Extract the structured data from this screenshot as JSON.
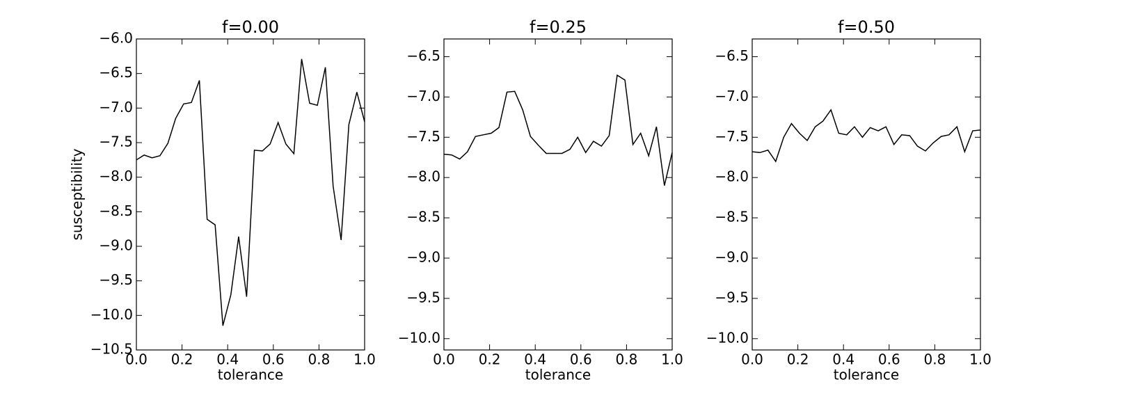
{
  "chart_data": [
    {
      "type": "line",
      "title": "f=0.00",
      "xlabel": "tolerance",
      "ylabel": "susceptibility",
      "x": [
        0,
        0.034,
        0.069,
        0.103,
        0.138,
        0.172,
        0.207,
        0.241,
        0.276,
        0.31,
        0.345,
        0.379,
        0.414,
        0.448,
        0.483,
        0.517,
        0.552,
        0.586,
        0.621,
        0.655,
        0.69,
        0.724,
        0.759,
        0.793,
        0.828,
        0.862,
        0.897,
        0.931,
        0.966,
        1
      ],
      "series": [
        {
          "color": "#000000",
          "values": [
            -7.75,
            -7.68,
            -7.72,
            -7.69,
            -7.51,
            -7.15,
            -6.94,
            -6.92,
            -6.6,
            -8.61,
            -8.69,
            -10.15,
            -9.7,
            -8.86,
            -9.73,
            -7.61,
            -7.62,
            -7.52,
            -7.21,
            -7.52,
            -7.66,
            -6.29,
            -6.93,
            -6.96,
            -6.41,
            -8.13,
            -8.91,
            -7.24,
            -6.77,
            -7.2
          ]
        }
      ],
      "xlim": [
        0,
        1
      ],
      "ylim": [
        -10.5,
        -6.0
      ],
      "xticks": [
        {
          "value": 0,
          "label": "0.0"
        },
        {
          "value": 0.2,
          "label": "0.2"
        },
        {
          "value": 0.4,
          "label": "0.4"
        },
        {
          "value": 0.6,
          "label": "0.6"
        },
        {
          "value": 0.8,
          "label": "0.8"
        },
        {
          "value": 1,
          "label": "1.0"
        }
      ],
      "yticks": [
        {
          "value": -10.5,
          "label": "−10.5"
        },
        {
          "value": -10,
          "label": "−10.0"
        },
        {
          "value": -9.5,
          "label": "−9.5"
        },
        {
          "value": -9,
          "label": "−9.0"
        },
        {
          "value": -8.5,
          "label": "−8.5"
        },
        {
          "value": -8,
          "label": "−8.0"
        },
        {
          "value": -7.5,
          "label": "−7.5"
        },
        {
          "value": -7,
          "label": "−7.0"
        },
        {
          "value": -6.5,
          "label": "−6.5"
        },
        {
          "value": -6,
          "label": "−6.0"
        }
      ]
    },
    {
      "type": "line",
      "title": "f=0.25",
      "xlabel": "tolerance",
      "x": [
        0,
        0.034,
        0.069,
        0.103,
        0.138,
        0.172,
        0.207,
        0.241,
        0.276,
        0.31,
        0.345,
        0.379,
        0.414,
        0.448,
        0.483,
        0.517,
        0.552,
        0.586,
        0.621,
        0.655,
        0.69,
        0.724,
        0.759,
        0.793,
        0.828,
        0.862,
        0.897,
        0.931,
        0.966,
        1
      ],
      "series": [
        {
          "color": "#000000",
          "values": [
            -7.71,
            -7.72,
            -7.77,
            -7.68,
            -7.49,
            -7.47,
            -7.45,
            -7.38,
            -6.94,
            -6.93,
            -7.16,
            -7.49,
            -7.6,
            -7.7,
            -7.7,
            -7.7,
            -7.65,
            -7.5,
            -7.69,
            -7.55,
            -7.61,
            -7.48,
            -6.73,
            -6.79,
            -7.59,
            -7.45,
            -7.73,
            -7.37,
            -8.1,
            -7.69
          ]
        }
      ],
      "xlim": [
        0,
        1
      ],
      "ylim": [
        -10.14,
        -6.28
      ],
      "xticks": [
        {
          "value": 0,
          "label": "0.0"
        },
        {
          "value": 0.2,
          "label": "0.2"
        },
        {
          "value": 0.4,
          "label": "0.4"
        },
        {
          "value": 0.6,
          "label": "0.6"
        },
        {
          "value": 0.8,
          "label": "0.8"
        },
        {
          "value": 1,
          "label": "1.0"
        }
      ],
      "yticks": [
        {
          "value": -10,
          "label": "−10.0"
        },
        {
          "value": -9.5,
          "label": "−9.5"
        },
        {
          "value": -9,
          "label": "−9.0"
        },
        {
          "value": -8.5,
          "label": "−8.5"
        },
        {
          "value": -8,
          "label": "−8.0"
        },
        {
          "value": -7.5,
          "label": "−7.5"
        },
        {
          "value": -7,
          "label": "−7.0"
        },
        {
          "value": -6.5,
          "label": "−6.5"
        }
      ]
    },
    {
      "type": "line",
      "title": "f=0.50",
      "xlabel": "tolerance",
      "x": [
        0,
        0.034,
        0.069,
        0.103,
        0.138,
        0.172,
        0.207,
        0.241,
        0.276,
        0.31,
        0.345,
        0.379,
        0.414,
        0.448,
        0.483,
        0.517,
        0.552,
        0.586,
        0.621,
        0.655,
        0.69,
        0.724,
        0.759,
        0.793,
        0.828,
        0.862,
        0.897,
        0.931,
        0.966,
        1
      ],
      "series": [
        {
          "color": "#000000",
          "values": [
            -7.68,
            -7.69,
            -7.66,
            -7.8,
            -7.5,
            -7.33,
            -7.45,
            -7.54,
            -7.37,
            -7.3,
            -7.16,
            -7.45,
            -7.47,
            -7.37,
            -7.5,
            -7.38,
            -7.42,
            -7.37,
            -7.59,
            -7.47,
            -7.48,
            -7.61,
            -7.67,
            -7.57,
            -7.49,
            -7.47,
            -7.37,
            -7.68,
            -7.42,
            -7.41
          ]
        }
      ],
      "xlim": [
        0,
        1
      ],
      "ylim": [
        -10.14,
        -6.28
      ],
      "xticks": [
        {
          "value": 0,
          "label": "0.0"
        },
        {
          "value": 0.2,
          "label": "0.2"
        },
        {
          "value": 0.4,
          "label": "0.4"
        },
        {
          "value": 0.6,
          "label": "0.6"
        },
        {
          "value": 0.8,
          "label": "0.8"
        },
        {
          "value": 1,
          "label": "1.0"
        }
      ],
      "yticks": [
        {
          "value": -10,
          "label": "−10.0"
        },
        {
          "value": -9.5,
          "label": "−9.5"
        },
        {
          "value": -9,
          "label": "−9.0"
        },
        {
          "value": -8.5,
          "label": "−8.5"
        },
        {
          "value": -8,
          "label": "−8.0"
        },
        {
          "value": -7.5,
          "label": "−7.5"
        },
        {
          "value": -7,
          "label": "−7.0"
        },
        {
          "value": -6.5,
          "label": "−6.5"
        }
      ]
    }
  ]
}
